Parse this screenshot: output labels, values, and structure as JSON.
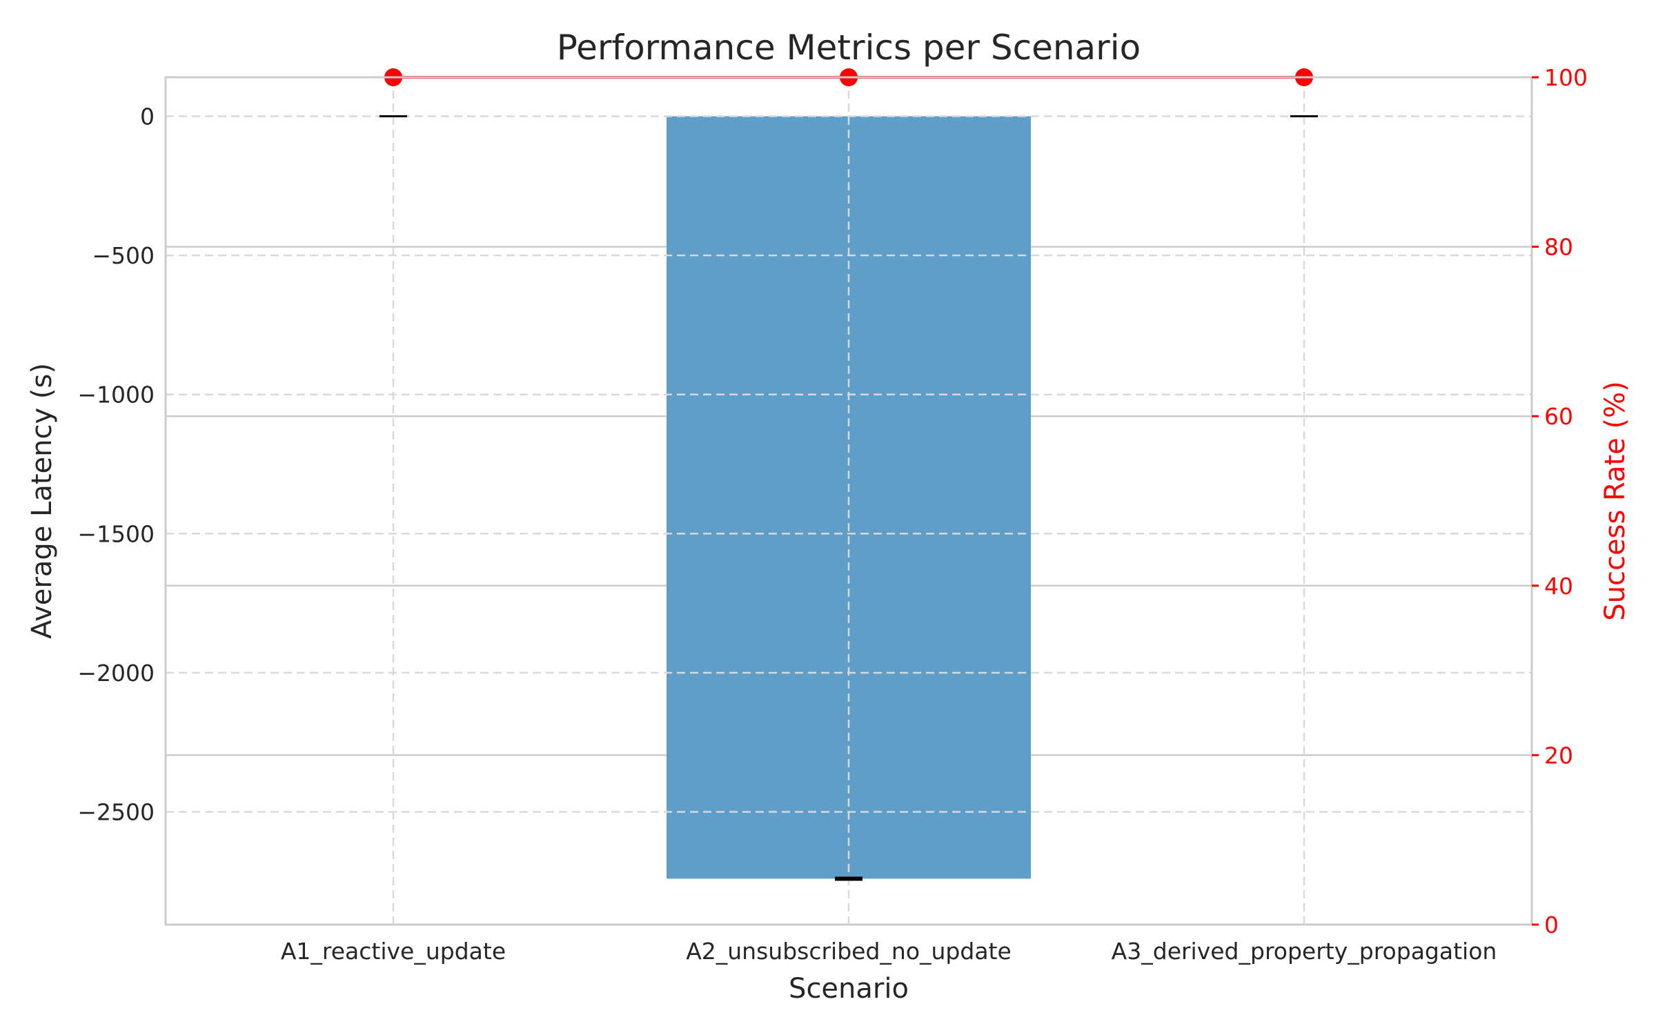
{
  "chart_data": {
    "type": "bar",
    "title": "Performance Metrics per Scenario",
    "xlabel": "Scenario",
    "ylabel": "Average Latency (s)",
    "y2label": "Success Rate (%)",
    "categories": [
      "A1_reactive_update",
      "A2_unsubscribed_no_update",
      "A3_derived_property_propagation"
    ],
    "series": [
      {
        "axis": "left",
        "kind": "bar",
        "values": [
          0,
          -2740,
          0
        ],
        "errors": [
          0,
          0,
          0
        ]
      },
      {
        "axis": "right",
        "kind": "line",
        "values": [
          100,
          100,
          100
        ]
      }
    ],
    "ylim": [
      -2905,
      140
    ],
    "y2lim": [
      0,
      100
    ],
    "yticks": [
      0,
      -500,
      -1000,
      -1500,
      -2000,
      -2500
    ],
    "y2ticks": [
      0,
      20,
      40,
      60,
      80,
      100
    ],
    "grid": true,
    "colors": {
      "bar": "#5f9ec8",
      "line": "#ff0000",
      "axis2": "#ff0000",
      "errorbar": "#000000"
    }
  }
}
